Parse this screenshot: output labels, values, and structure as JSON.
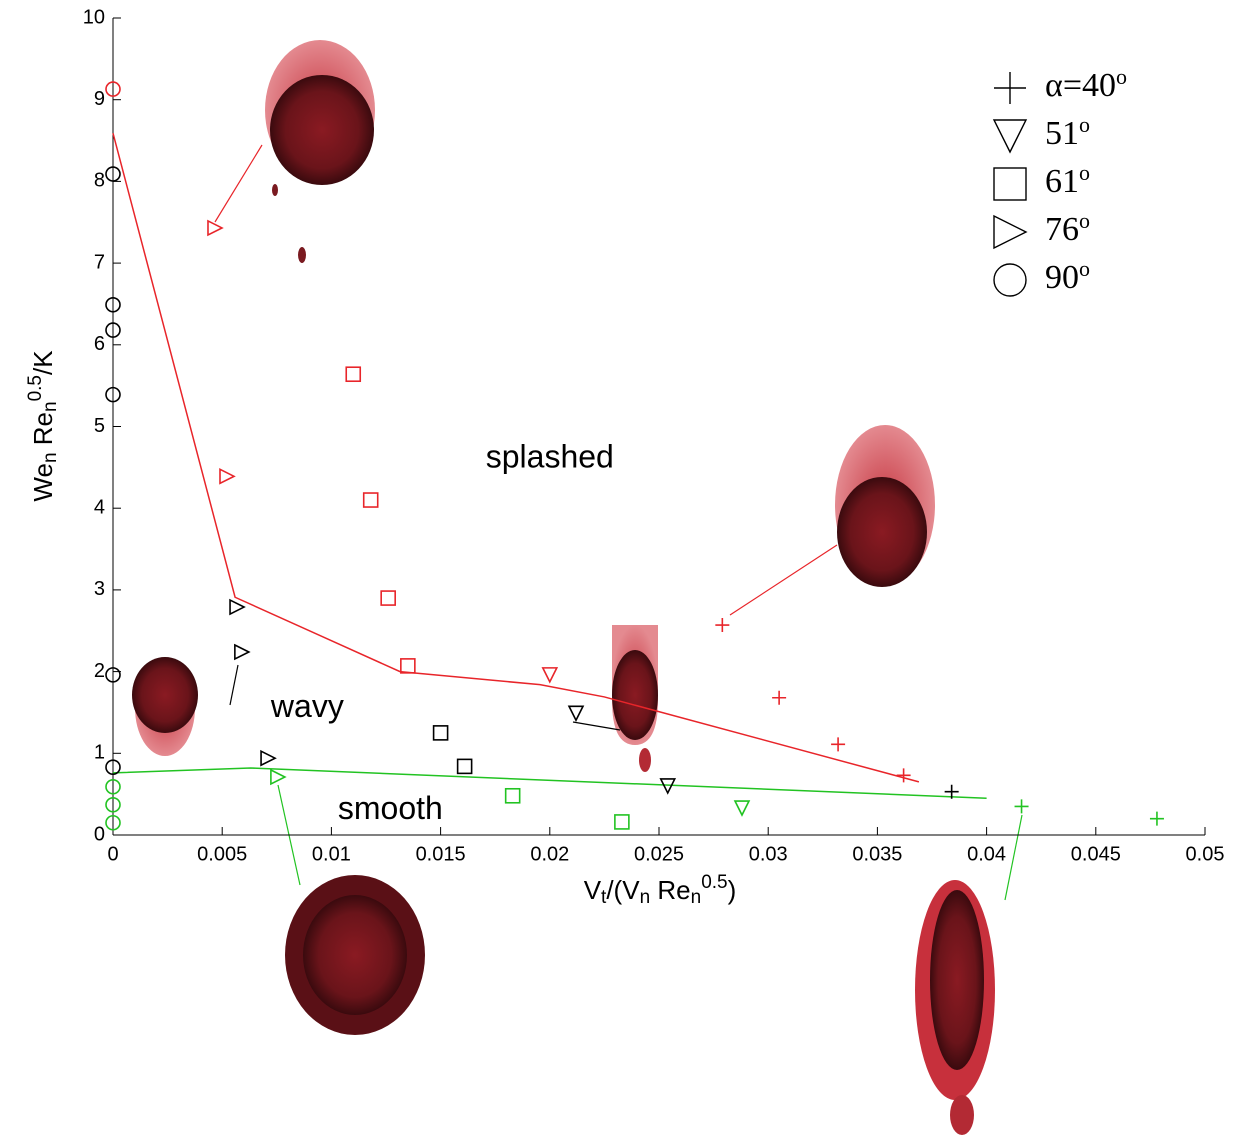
{
  "chart_data": {
    "type": "scatter",
    "xlabel": [
      {
        "text": "V"
      },
      {
        "sub": "t"
      },
      {
        "text": "/(V"
      },
      {
        "sub": "n"
      },
      {
        "text": " Re"
      },
      {
        "sub": "n"
      },
      {
        "sup": "0.5"
      },
      {
        "text": ")"
      }
    ],
    "ylabel": [
      {
        "text": "We"
      },
      {
        "sub": "n"
      },
      {
        "text": " Re"
      },
      {
        "sub": "n"
      },
      {
        "sup": "0.5"
      },
      {
        "text": "/K"
      }
    ],
    "xlim": [
      0,
      0.05
    ],
    "xticks": [
      0,
      0.005,
      0.01,
      0.015,
      0.02,
      0.025,
      0.03,
      0.035,
      0.04,
      0.045,
      0.05
    ],
    "ylim": [
      0,
      10
    ],
    "yticks": [
      0,
      1,
      2,
      3,
      4,
      5,
      6,
      7,
      8,
      9,
      10
    ],
    "legend": "upper right",
    "series": [
      {
        "name": "α=40",
        "name_sup": "o",
        "marker": "plus",
        "x": [
          0.0279,
          0.0305,
          0.0332,
          0.0362,
          0.0384,
          0.0416,
          0.0478
        ],
        "y": [
          2.57,
          1.68,
          1.11,
          0.73,
          0.53,
          0.35,
          0.2
        ],
        "colors": [
          "#e8252a",
          "#e8252a",
          "#e8252a",
          "#e8252a",
          "#000000",
          "#22c322",
          "#22c322"
        ]
      },
      {
        "name": "51",
        "name_sup": "o",
        "marker": "triangle-down",
        "x": [
          0.02,
          0.0212,
          0.0254,
          0.0288
        ],
        "y": [
          1.96,
          1.49,
          0.6,
          0.33
        ],
        "colors": [
          "#e8252a",
          "#000000",
          "#000000",
          "#22c322"
        ]
      },
      {
        "name": "61",
        "name_sup": "o",
        "marker": "square",
        "x": [
          0.011,
          0.0118,
          0.0126,
          0.0135,
          0.015,
          0.0161,
          0.0183,
          0.0233
        ],
        "y": [
          5.64,
          4.1,
          2.9,
          2.07,
          1.25,
          0.84,
          0.48,
          0.16
        ],
        "colors": [
          "#e8252a",
          "#e8252a",
          "#e8252a",
          "#e8252a",
          "#000000",
          "#000000",
          "#22c322",
          "#22c322"
        ]
      },
      {
        "name": "76",
        "name_sup": "o",
        "marker": "triangle-right",
        "x": [
          0.00467,
          0.00522,
          0.00568,
          0.0059,
          0.0071,
          0.00755
        ],
        "y": [
          7.43,
          4.39,
          2.79,
          2.24,
          0.94,
          0.71
        ],
        "colors": [
          "#e8252a",
          "#e8252a",
          "#000000",
          "#000000",
          "#000000",
          "#22c322"
        ]
      },
      {
        "name": "90",
        "name_sup": "o",
        "marker": "circle",
        "x": [
          0,
          0,
          0,
          0,
          0,
          0,
          0,
          0,
          0,
          0
        ],
        "y": [
          9.13,
          8.09,
          6.49,
          6.18,
          5.39,
          1.96,
          0.83,
          0.59,
          0.37,
          0.15
        ],
        "colors": [
          "#e8252a",
          "#000000",
          "#000000",
          "#000000",
          "#000000",
          "#000000",
          "#000000",
          "#22c322",
          "#22c322",
          "#22c322"
        ]
      }
    ],
    "lines": [
      {
        "color": "#e8252a",
        "x": [
          0,
          0.00559,
          0.01314,
          0.01955,
          0.0225,
          0.0369
        ],
        "y": [
          8.59,
          2.91,
          2.0,
          1.84,
          1.69,
          0.65
        ]
      },
      {
        "color": "#22c322",
        "x": [
          0,
          0.0063,
          0.04
        ],
        "y": [
          0.76,
          0.82,
          0.45
        ]
      }
    ],
    "annotations": [
      {
        "text": "splashed",
        "x": 0.02,
        "y": 4.6
      },
      {
        "text": "wavy",
        "x": 0.0089,
        "y": 1.55
      },
      {
        "text": "smooth",
        "x": 0.0127,
        "y": 0.3
      }
    ]
  }
}
